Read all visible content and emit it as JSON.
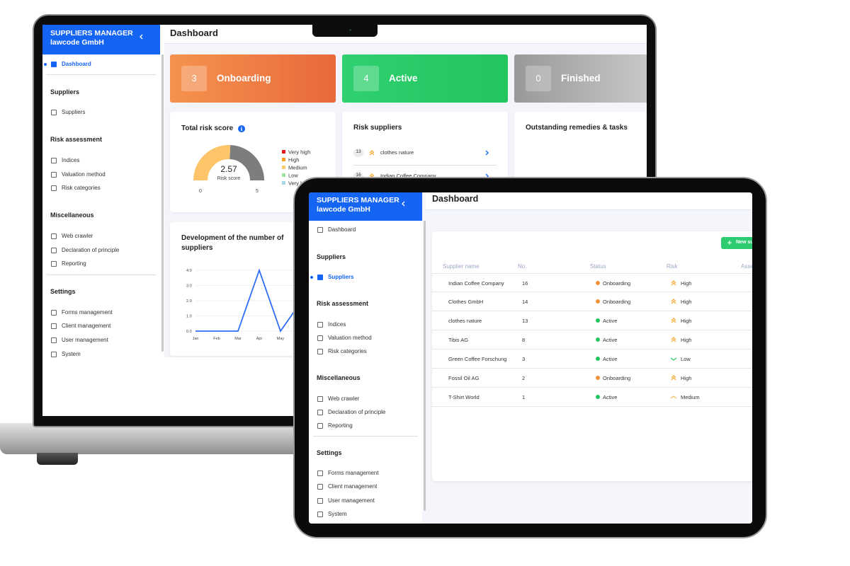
{
  "laptop": {
    "sidebar": {
      "title": "SUPPLIERS MANAGER",
      "subtitle": "lawcode GmbH",
      "home": "Dashboard",
      "groups": [
        {
          "heading": "Suppliers",
          "items": [
            "Suppliers"
          ]
        },
        {
          "heading": "Risk assessment",
          "items": [
            "Indices",
            "Valuation method",
            "Risk categories"
          ]
        },
        {
          "heading": "Miscellaneous",
          "items": [
            "Web crawler",
            "Declaration of principle",
            "Reporting"
          ]
        },
        {
          "heading": "Settings",
          "items": [
            "Forms management",
            "Client management",
            "User management",
            "System"
          ]
        }
      ]
    },
    "header": "Dashboard",
    "status_cards": [
      {
        "count": 3,
        "label": "Onboarding"
      },
      {
        "count": 4,
        "label": "Active"
      },
      {
        "count": 0,
        "label": "Finished"
      }
    ],
    "risk_card": {
      "title": "Total risk score",
      "score": 2.57,
      "caption": "Risk score",
      "min": 0,
      "max": 5,
      "legend": [
        {
          "name": "Very high",
          "color": "#e5181e"
        },
        {
          "name": "High",
          "color": "#f5a11f"
        },
        {
          "name": "Medium",
          "color": "#f9cb72"
        },
        {
          "name": "Low",
          "color": "#9fe3a0"
        },
        {
          "name": "Very low",
          "color": "#a9d7e6"
        }
      ]
    },
    "risk_suppliers": {
      "title": "Risk suppliers",
      "items": [
        {
          "no": 13,
          "name": "clothes nature"
        },
        {
          "no": 16,
          "name": "Indian Coffee Company"
        }
      ]
    },
    "tasks_card": {
      "title": "Outstanding remedies & tasks"
    },
    "chart": {
      "type": "line",
      "title": "Development of the number of suppliers",
      "color": "#2f6df6",
      "categories": [
        "Jan",
        "Feb",
        "Mar",
        "Apr",
        "May",
        null
      ],
      "values": [
        0,
        0,
        0,
        4,
        0,
        2
      ],
      "ylim": [
        0,
        4
      ],
      "yticks": [
        {
          "value": 0,
          "label": "0.0"
        },
        {
          "value": 1,
          "label": "1.0"
        },
        {
          "value": 2,
          "label": "2.0"
        },
        {
          "value": 3,
          "label": "3.0"
        },
        {
          "value": 4,
          "label": "4.0"
        }
      ]
    }
  },
  "tablet": {
    "sidebar": {
      "title": "SUPPLIERS MANAGER",
      "subtitle": "lawcode GmbH",
      "home": "Dashboard",
      "groups": [
        {
          "heading": "Suppliers",
          "items": [
            "Suppliers"
          ]
        },
        {
          "heading": "Risk assessment",
          "items": [
            "Indices",
            "Valuation method",
            "Risk categories"
          ]
        },
        {
          "heading": "Miscellaneous",
          "items": [
            "Web crawler",
            "Declaration of principle",
            "Reporting"
          ]
        },
        {
          "heading": "Settings",
          "items": [
            "Forms management",
            "Client management",
            "User management",
            "System"
          ]
        }
      ]
    },
    "header": "Dashboard",
    "button": "New supplier",
    "table": {
      "columns": [
        "Supplier name",
        "No.",
        "Status",
        "Risk",
        "Assessment"
      ],
      "rows": [
        [
          "Indian Coffee Company",
          16,
          "Onboarding",
          "High"
        ],
        [
          "Clothes GmbH",
          14,
          "Onboarding",
          "High"
        ],
        [
          "clothes nature",
          13,
          "Active",
          "High"
        ],
        [
          "Tibis AG",
          8,
          "Active",
          "High"
        ],
        [
          "Green Coffee Forschung",
          3,
          "Active",
          "Low"
        ],
        [
          "Fossil Oil AG",
          2,
          "Onboarding",
          "High"
        ],
        [
          "T-Shirt World",
          1,
          "Active",
          "Medium"
        ]
      ]
    }
  }
}
